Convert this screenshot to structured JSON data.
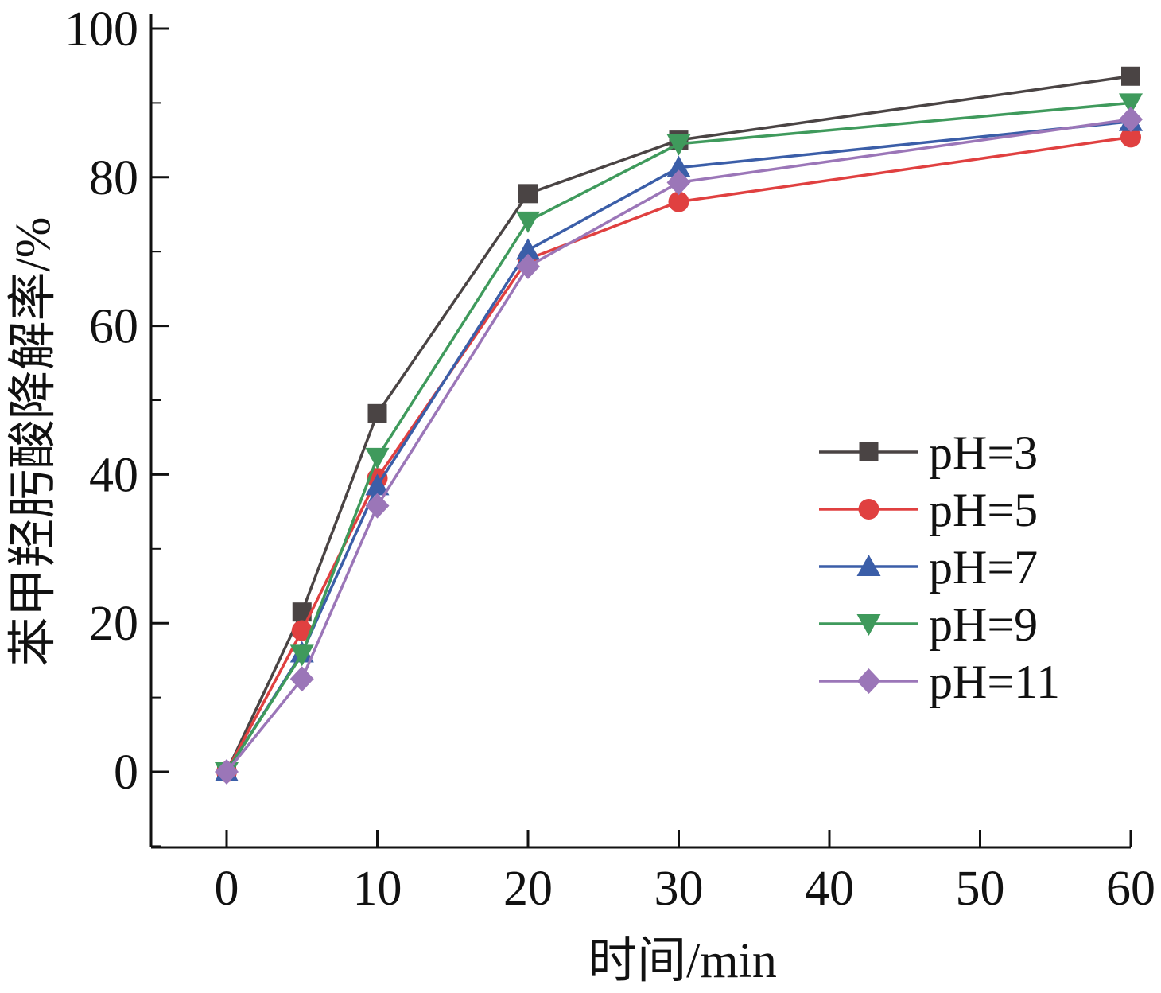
{
  "chart_data": {
    "type": "line",
    "xlabel": "时间/min",
    "ylabel": "苯甲羟肟酸降解率/%",
    "xlim": [
      -5,
      60
    ],
    "ylim": [
      -10,
      100
    ],
    "xticks": [
      0,
      10,
      20,
      30,
      40,
      50,
      60
    ],
    "yticks": [
      0,
      20,
      40,
      60,
      80,
      100
    ],
    "x": [
      0,
      5,
      10,
      20,
      30,
      60
    ],
    "legend_position": "right-middle",
    "grid": false,
    "series": [
      {
        "name": "pH=3",
        "color": "#4a4444",
        "marker": "square",
        "values": [
          0,
          21.5,
          48.2,
          77.8,
          85.0,
          93.6
        ]
      },
      {
        "name": "pH=5",
        "color": "#e04040",
        "marker": "circle",
        "values": [
          0,
          19.0,
          39.5,
          69.0,
          76.7,
          85.4
        ]
      },
      {
        "name": "pH=7",
        "color": "#3b5ea8",
        "marker": "triangle-up",
        "values": [
          0,
          16.0,
          38.5,
          70.2,
          81.3,
          87.5
        ]
      },
      {
        "name": "pH=9",
        "color": "#3f9a5c",
        "marker": "triangle-down",
        "values": [
          0,
          15.8,
          42.3,
          74.1,
          84.5,
          90.0
        ]
      },
      {
        "name": "pH=11",
        "color": "#9b76b8",
        "marker": "diamond",
        "values": [
          0,
          12.5,
          35.8,
          68.0,
          79.3,
          87.8
        ]
      }
    ]
  }
}
